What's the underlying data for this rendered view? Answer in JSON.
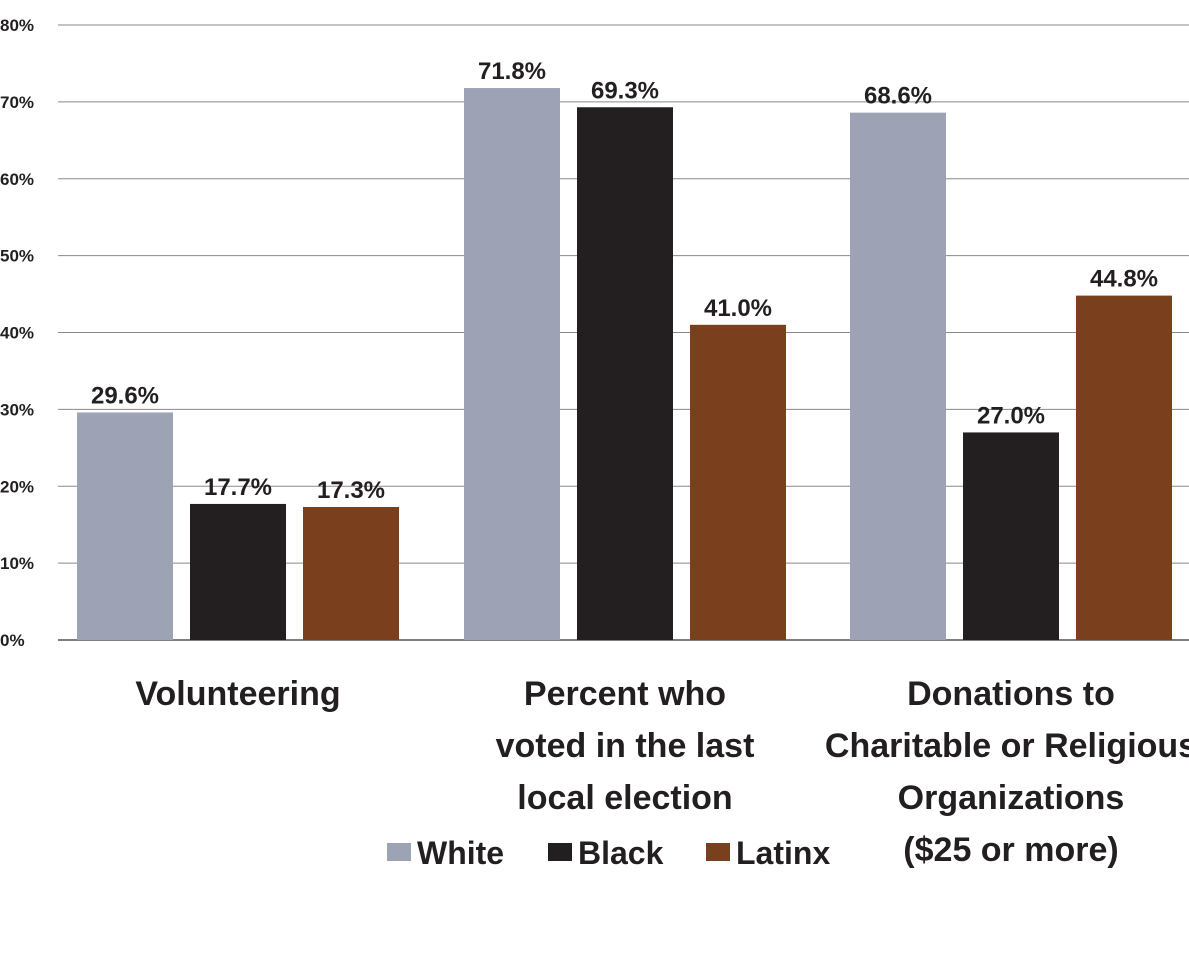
{
  "chart_data": {
    "type": "bar",
    "title": "",
    "xlabel": "",
    "ylabel": "",
    "ylim": [
      0,
      80
    ],
    "yticks": [
      0,
      10,
      20,
      30,
      40,
      50,
      60,
      70,
      80
    ],
    "ytick_labels": [
      "0%",
      "10%",
      "20%",
      "30%",
      "40%",
      "50%",
      "60%",
      "70%",
      "80%"
    ],
    "grid": true,
    "legend_position": "bottom-center",
    "categories": [
      [
        "Volunteering"
      ],
      [
        "Percent who",
        "voted in the last",
        "local election"
      ],
      [
        "Donations to",
        "Charitable or Religious",
        "Organizations",
        "($25 or more)"
      ]
    ],
    "series": [
      {
        "name": "White",
        "color": "#9da3b5",
        "values": [
          29.6,
          71.8,
          68.6
        ],
        "labels": [
          "29.6%",
          "71.8%",
          "68.6%"
        ]
      },
      {
        "name": "Black",
        "color": "#231f20",
        "values": [
          17.7,
          69.3,
          27.0
        ],
        "labels": [
          "17.7%",
          "69.3%",
          "27.0%"
        ]
      },
      {
        "name": "Latinx",
        "color": "#7a3f1c",
        "values": [
          17.3,
          41.0,
          44.8
        ],
        "labels": [
          "17.3%",
          "41.0%",
          "44.8%"
        ]
      }
    ]
  }
}
